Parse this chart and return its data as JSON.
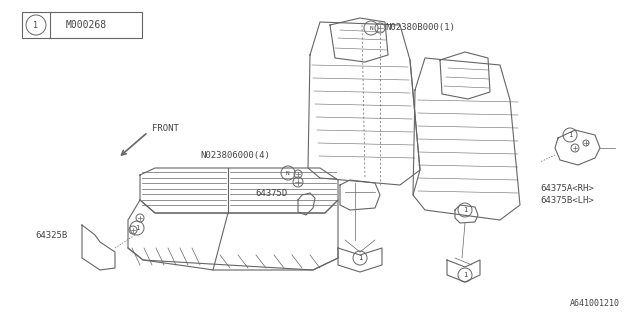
{
  "bg_color": "#ffffff",
  "line_color": "#666666",
  "text_color": "#444444",
  "part_number_bottom_right": "A641001210",
  "label_N1_text": "N02380B000(1)",
  "label_N4_text": "N023806000(4)",
  "label_64375D": "64375D",
  "label_64325B": "64325B",
  "label_64375A": "64375A<RH>",
  "label_64375B": "64375B<LH>",
  "label_front": "FRONT"
}
